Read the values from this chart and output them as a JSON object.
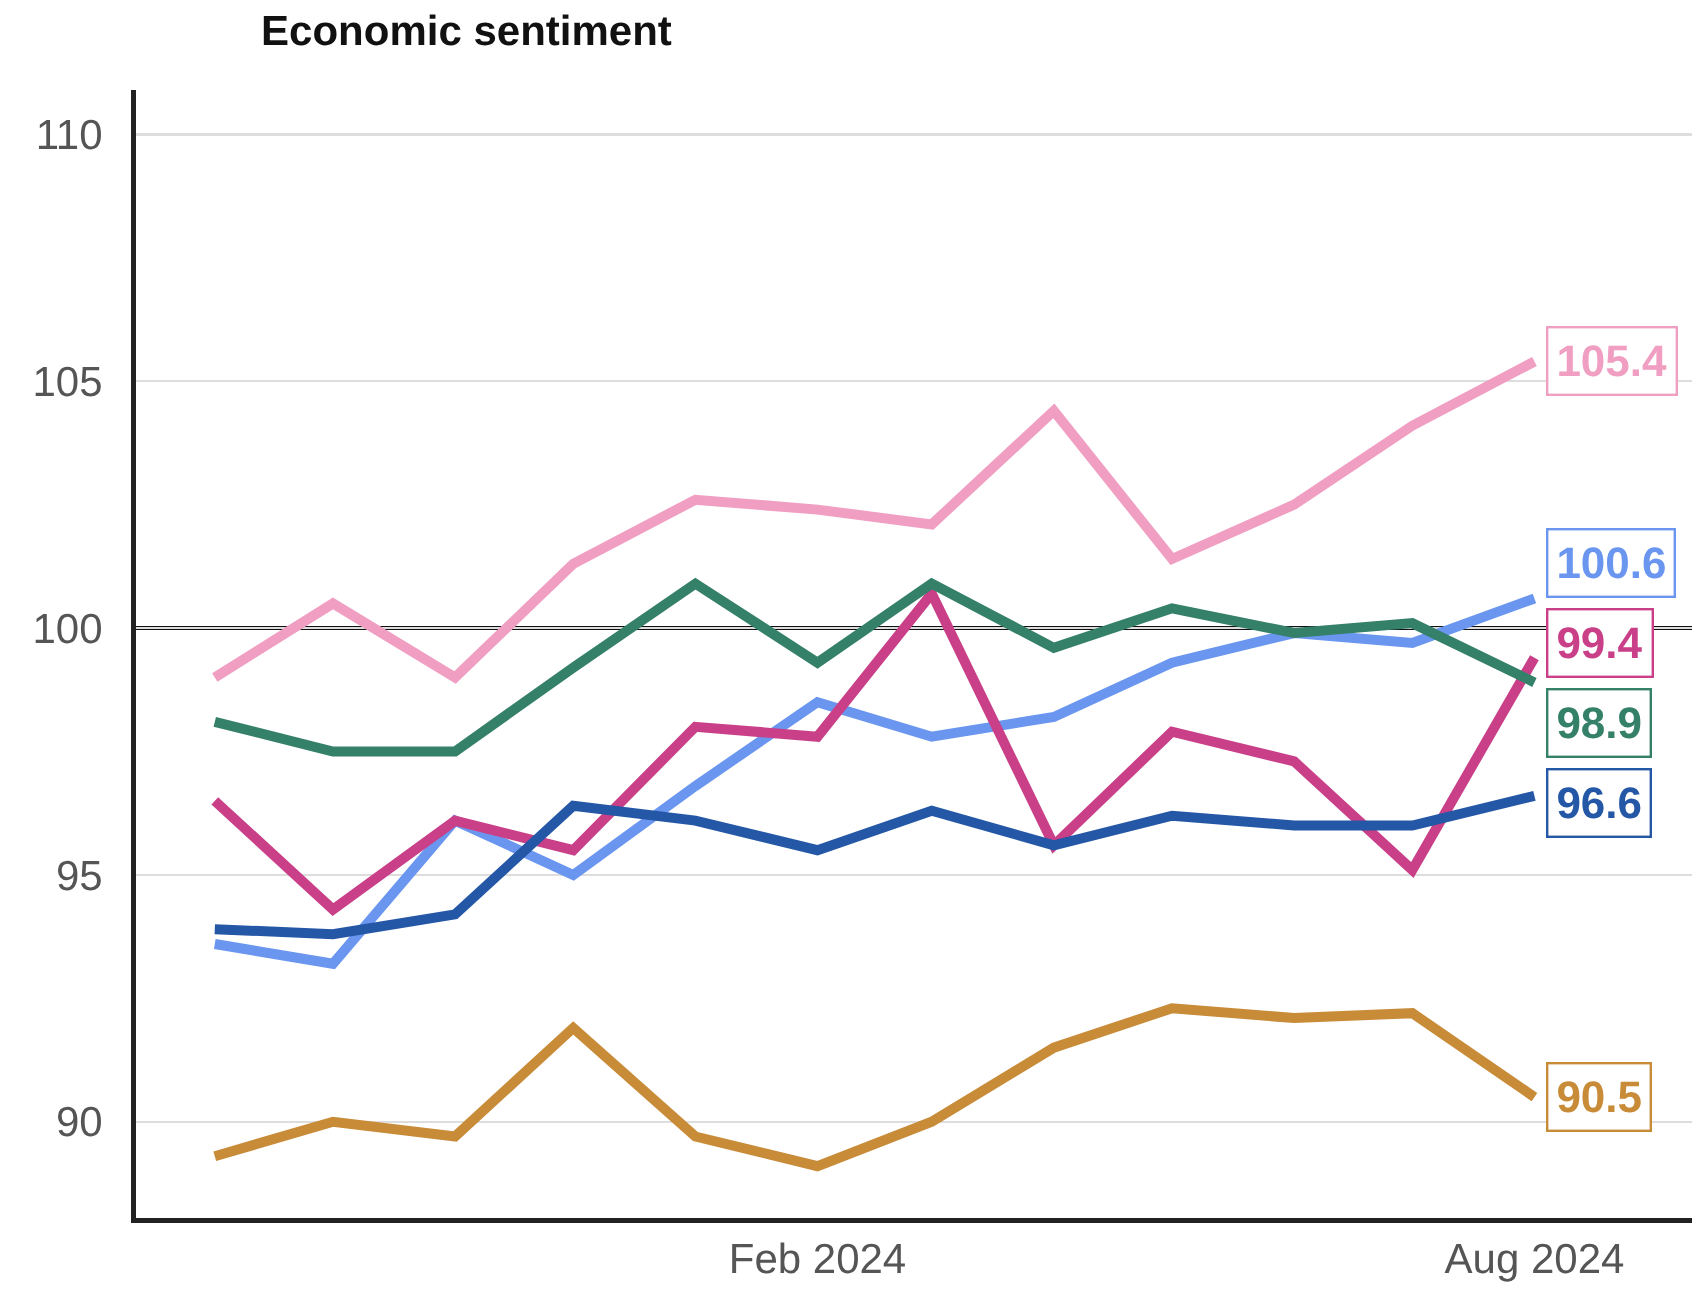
{
  "chart_data": {
    "type": "line",
    "title": "Economic sentiment",
    "x": [
      "2023-09",
      "2023-10",
      "2023-11",
      "2023-12",
      "2024-01",
      "2024-02",
      "2024-03",
      "2024-04",
      "2024-05",
      "2024-06",
      "2024-07",
      "2024-08"
    ],
    "series": [
      {
        "color": "#f09ec2",
        "values": [
          99.0,
          100.5,
          99.0,
          101.3,
          102.6,
          102.4,
          102.1,
          104.4,
          101.4,
          102.5,
          104.1,
          105.4
        ],
        "value_labels": [
          null,
          null,
          null,
          null,
          null,
          null,
          null,
          null,
          null,
          null,
          null,
          "105.4"
        ]
      },
      {
        "color": "#6a96f0",
        "values": [
          93.6,
          93.2,
          96.1,
          95.0,
          96.8,
          98.5,
          97.8,
          98.2,
          99.3,
          99.9,
          99.7,
          100.6
        ],
        "value_labels": [
          null,
          null,
          null,
          null,
          null,
          null,
          null,
          null,
          null,
          null,
          null,
          "100.6"
        ]
      },
      {
        "color": "#c93f88",
        "values": [
          96.5,
          94.3,
          96.1,
          95.5,
          98.0,
          97.8,
          100.7,
          95.6,
          97.9,
          97.3,
          95.1,
          99.4
        ],
        "value_labels": [
          null,
          null,
          null,
          null,
          null,
          null,
          null,
          null,
          null,
          null,
          null,
          "99.4"
        ]
      },
      {
        "color": "#358068",
        "values": [
          98.1,
          97.5,
          97.5,
          99.2,
          100.9,
          99.3,
          100.9,
          99.6,
          100.4,
          99.9,
          100.1,
          98.9
        ],
        "value_labels": [
          null,
          null,
          null,
          null,
          null,
          null,
          null,
          null,
          null,
          null,
          null,
          "98.9"
        ]
      },
      {
        "color": "#2457a6",
        "values": [
          93.9,
          93.8,
          94.2,
          96.4,
          96.1,
          95.5,
          96.3,
          95.6,
          96.2,
          96.0,
          96.0,
          96.6
        ],
        "value_labels": [
          null,
          null,
          null,
          null,
          null,
          null,
          null,
          null,
          null,
          null,
          null,
          "96.6"
        ]
      },
      {
        "color": "#c88b38",
        "values": [
          89.3,
          90.0,
          89.7,
          91.9,
          89.7,
          89.1,
          90.0,
          91.5,
          92.3,
          92.1,
          92.2,
          90.5
        ],
        "value_labels": [
          null,
          null,
          null,
          null,
          null,
          null,
          null,
          null,
          null,
          null,
          null,
          "90.5"
        ]
      }
    ],
    "xlim": [
      "2023-08-12",
      "2024-09-10"
    ],
    "xticks": [
      {
        "value": "2024-02",
        "label": "Feb 2024"
      },
      {
        "value": "2024-08",
        "label": "Aug 2024"
      }
    ],
    "ylim": [
      88.05,
      110.9
    ],
    "yticks": [
      90,
      95,
      100,
      105,
      110
    ],
    "grid": "y",
    "marker": "none",
    "line_style": "solid",
    "ref_lines": [
      {
        "axis": "y",
        "value": 100,
        "color": "#111111"
      }
    ]
  }
}
